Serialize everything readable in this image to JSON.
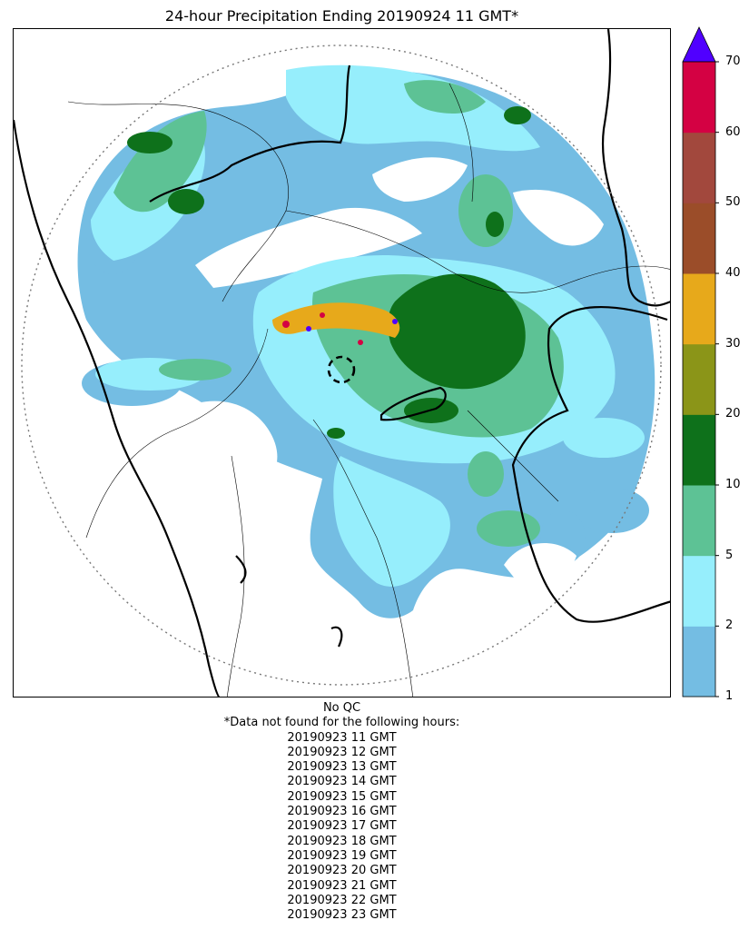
{
  "title": "24-hour Precipitation Ending 20190924 11 GMT*",
  "colorbar": {
    "tick_labels": [
      "1",
      "2",
      "5",
      "10",
      "20",
      "30",
      "40",
      "50",
      "60",
      "70"
    ],
    "bin_colors": [
      "#74bde3",
      "#96eefc",
      "#5dc295",
      "#0e711b",
      "#8b9518",
      "#e7a91b",
      "#9b4d29",
      "#a2483d",
      "#d40143"
    ],
    "extend_color": "#5000ff",
    "unit_extend": "max"
  },
  "map": {
    "range_ring": "dotted",
    "legend_colors_used": [
      "#74bde3",
      "#96eefc",
      "#5dc295",
      "#0e711b",
      "#e7a91b",
      "#d40143",
      "#5000ff"
    ]
  },
  "notes": {
    "qc": "No QC",
    "missing_header": "*Data not found for the following hours:",
    "missing_hours": [
      "20190923 11 GMT",
      "20190923 12 GMT",
      "20190923 13 GMT",
      "20190923 14 GMT",
      "20190923 15 GMT",
      "20190923 16 GMT",
      "20190923 17 GMT",
      "20190923 18 GMT",
      "20190923 19 GMT",
      "20190923 20 GMT",
      "20190923 21 GMT",
      "20190923 22 GMT",
      "20190923 23 GMT"
    ]
  }
}
